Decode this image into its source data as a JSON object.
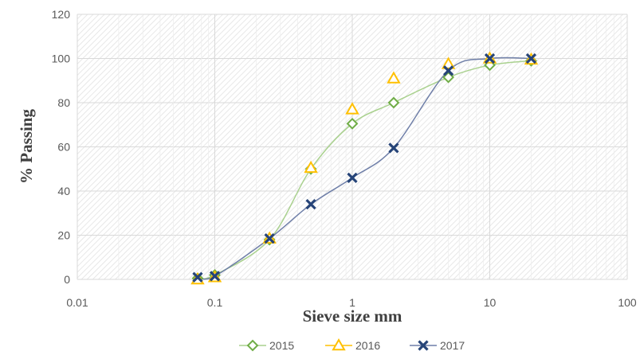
{
  "chart_data": {
    "type": "scatter",
    "title": "",
    "xlabel": "Sieve size mm",
    "ylabel": "% Passing",
    "x_scale": "log",
    "xlim": [
      0.01,
      100
    ],
    "ylim": [
      0,
      120
    ],
    "x_ticks": [
      "0.01",
      "0.1",
      "1",
      "10",
      "100"
    ],
    "y_ticks": [
      "0",
      "20",
      "40",
      "60",
      "80",
      "100",
      "120"
    ],
    "grid": true,
    "legend_position": "bottom",
    "series": [
      {
        "name": "2015",
        "marker": "diamond",
        "line": "smooth",
        "color": "#70AD47",
        "x": [
          0.075,
          0.1,
          0.25,
          0.5,
          1,
          2,
          5,
          10,
          20
        ],
        "y": [
          0.5,
          2,
          18,
          50,
          70.5,
          80,
          91.5,
          97,
          99
        ]
      },
      {
        "name": "2016",
        "marker": "triangle",
        "line": "none",
        "color": "#FFC000",
        "x": [
          0.075,
          0.1,
          0.25,
          0.5,
          1,
          2,
          5,
          10,
          20
        ],
        "y": [
          0,
          1,
          18.5,
          50.5,
          77,
          91,
          97.5,
          100,
          99.5
        ]
      },
      {
        "name": "2017",
        "marker": "x",
        "line": "smooth",
        "color": "#264478",
        "x": [
          0.075,
          0.1,
          0.25,
          0.5,
          1,
          2,
          5,
          10,
          20
        ],
        "y": [
          1,
          1.5,
          18.5,
          34,
          46,
          59.5,
          94.5,
          100,
          100
        ]
      }
    ]
  }
}
